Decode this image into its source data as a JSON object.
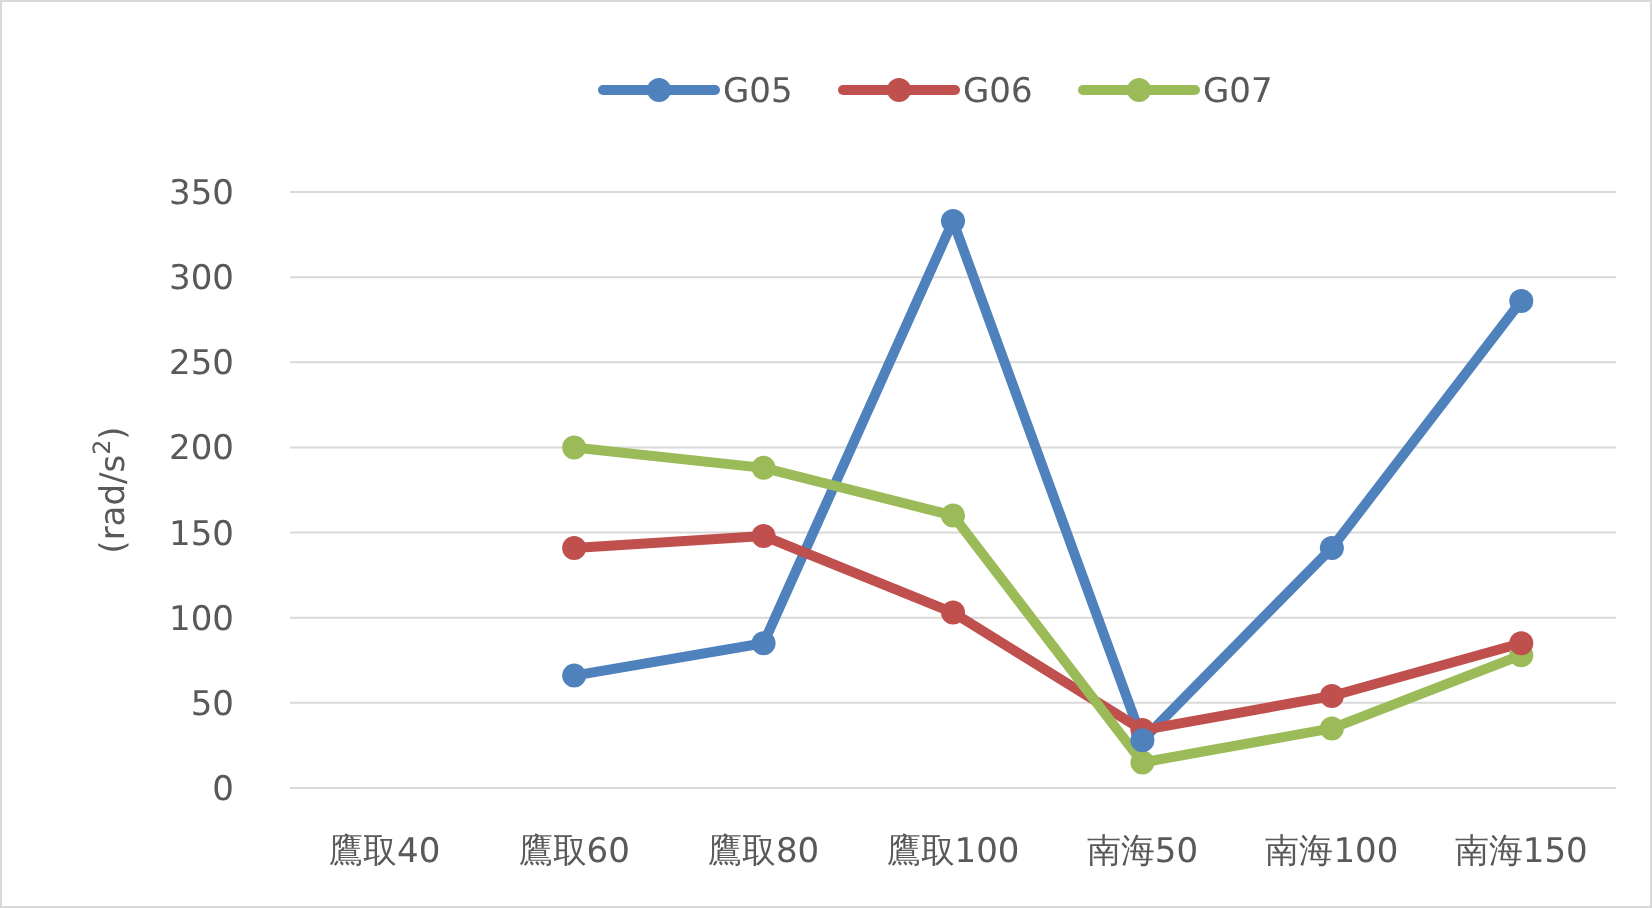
{
  "chart_data": {
    "type": "line",
    "ylabel": "(rad/s$^{2}$)",
    "categories": [
      "鷹取40",
      "鷹取60",
      "鷹取80",
      "鷹取100",
      "南海50",
      "南海100",
      "南海150"
    ],
    "series": [
      {
        "name": "G05",
        "color": "#4f81bd",
        "values": [
          null,
          66,
          85,
          333,
          28,
          141,
          286
        ]
      },
      {
        "name": "G06",
        "color": "#c0504d",
        "values": [
          null,
          141,
          148,
          103,
          34,
          54,
          85
        ]
      },
      {
        "name": "G07",
        "color": "#9bbb59",
        "values": [
          null,
          200,
          188,
          160,
          15,
          35,
          78
        ]
      }
    ],
    "ylim": [
      0,
      350
    ],
    "yticks": [
      0,
      50,
      100,
      150,
      200,
      250,
      300,
      350
    ],
    "grid": "y",
    "legend": "top",
    "marker": "circle",
    "line_style": "solid"
  }
}
